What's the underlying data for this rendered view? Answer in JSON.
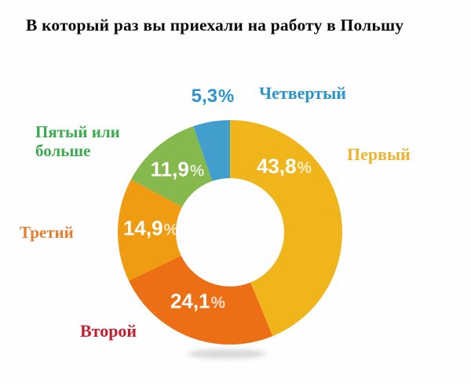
{
  "title": "В который раз вы приехали на работу в Польшу",
  "chart_data": {
    "type": "pie",
    "subtype": "donut",
    "title": "В который раз вы приехали на работу в Польшу",
    "unit": "%",
    "decimal_separator": ",",
    "start_angle_deg": 0,
    "direction": "clockwise",
    "inner_radius_ratio": 0.48,
    "background_color": "#fefefe",
    "legend_position": "labels-around-chart",
    "segments": [
      {
        "id": "first",
        "label": "Первый",
        "value": 43.8,
        "value_label": "43,8",
        "color": "#F0B51A",
        "label_color": "#EFB42F",
        "value_label_color": "#ffffff",
        "value_label_placement": "inside"
      },
      {
        "id": "second",
        "label": "Второй",
        "value": 24.1,
        "value_label": "24,1",
        "color": "#EC6F15",
        "label_color": "#C2202F",
        "value_label_color": "#ffffff",
        "value_label_placement": "inside"
      },
      {
        "id": "third",
        "label": "Третий",
        "value": 14.9,
        "value_label": "14,9",
        "color": "#F09C12",
        "label_color": "#E67E2E",
        "value_label_color": "#ffffff",
        "value_label_placement": "inside"
      },
      {
        "id": "fifth-plus",
        "label": "Пятый или больше",
        "value": 11.9,
        "value_label": "11,9",
        "color": "#85B84D",
        "label_color": "#3BAC4D",
        "value_label_color": "#ffffff",
        "value_label_placement": "inside"
      },
      {
        "id": "fourth",
        "label": "Четвертый",
        "value": 5.3,
        "value_label": "5,3",
        "color": "#429FCD",
        "label_color": "#2D93CB",
        "value_label_color": "#2D93CB",
        "value_label_placement": "outside"
      }
    ]
  }
}
